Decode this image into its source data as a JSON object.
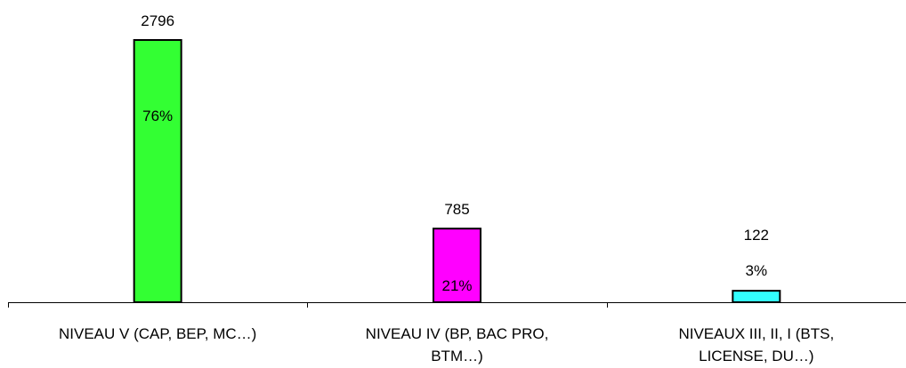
{
  "chart_data": {
    "type": "bar",
    "categories": [
      [
        "NIVEAU V (CAP, BEP, MC…)"
      ],
      [
        "NIVEAU IV (BP, BAC PRO,",
        "BTM…)"
      ],
      [
        "NIVEAUX III, II, I (BTS,",
        "LICENSE, DU…)"
      ]
    ],
    "values": [
      2796,
      785,
      122
    ],
    "percent_labels": [
      "76%",
      "21%",
      "3%"
    ],
    "colors": [
      "#33ff33",
      "#ff00ff",
      "#33ffff"
    ],
    "title": "",
    "xlabel": "",
    "ylabel": "",
    "ylim": [
      0,
      2796
    ],
    "grid": false,
    "legend": "none"
  }
}
